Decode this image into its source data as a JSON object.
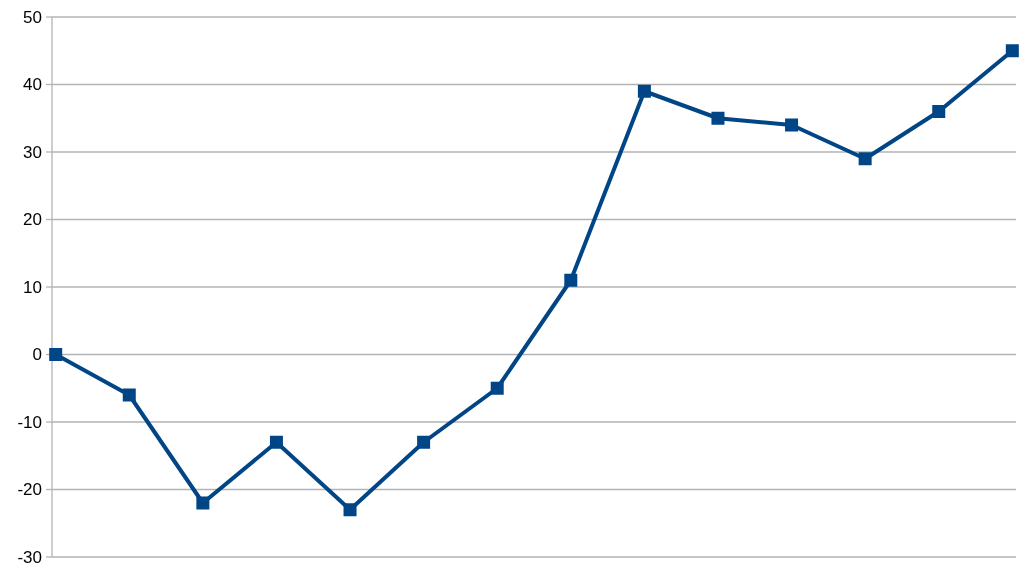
{
  "chart_data": {
    "type": "line",
    "categories": [
      null,
      null,
      null,
      null,
      null,
      null,
      null,
      null,
      null,
      null,
      null,
      null,
      null,
      null
    ],
    "series": [
      {
        "color": "#004586",
        "values": [
          0,
          -6,
          -22,
          -13,
          -23,
          -13,
          -5,
          11,
          39,
          35,
          34,
          29,
          36,
          45
        ]
      }
    ],
    "ylim": [
      -30,
      50
    ],
    "yticks": [
      -30,
      -20,
      -10,
      0,
      10,
      20,
      30,
      40,
      50
    ],
    "grid": "y",
    "marker": "square",
    "line_style": "solid"
  }
}
